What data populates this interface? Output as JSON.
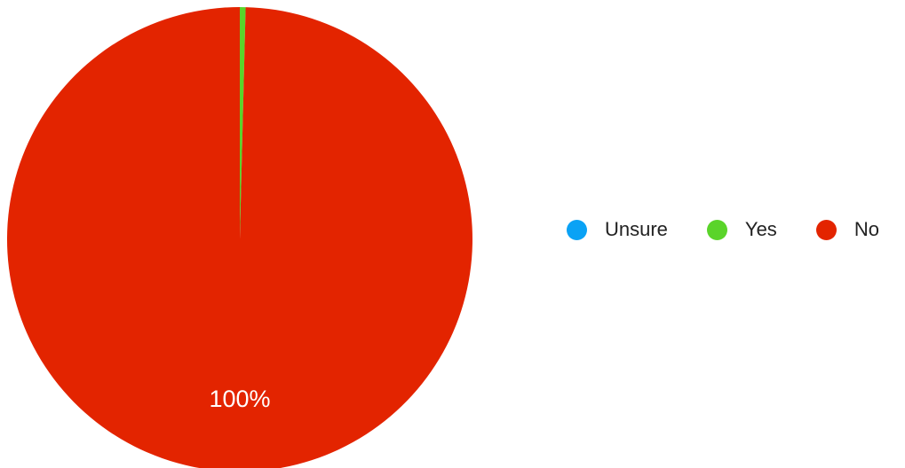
{
  "chart_data": {
    "type": "pie",
    "slices": [
      {
        "name": "Unsure",
        "value": 0,
        "color": "#0aa2f5"
      },
      {
        "name": "Yes",
        "value": 0.4,
        "color": "#5ad42a"
      },
      {
        "name": "No",
        "value": 99.6,
        "color": "#e32400"
      }
    ],
    "data_labels": [
      "100%"
    ],
    "legend": {
      "placement": "right",
      "entries": [
        "Unsure",
        "Yes",
        "No"
      ]
    },
    "title": ""
  }
}
